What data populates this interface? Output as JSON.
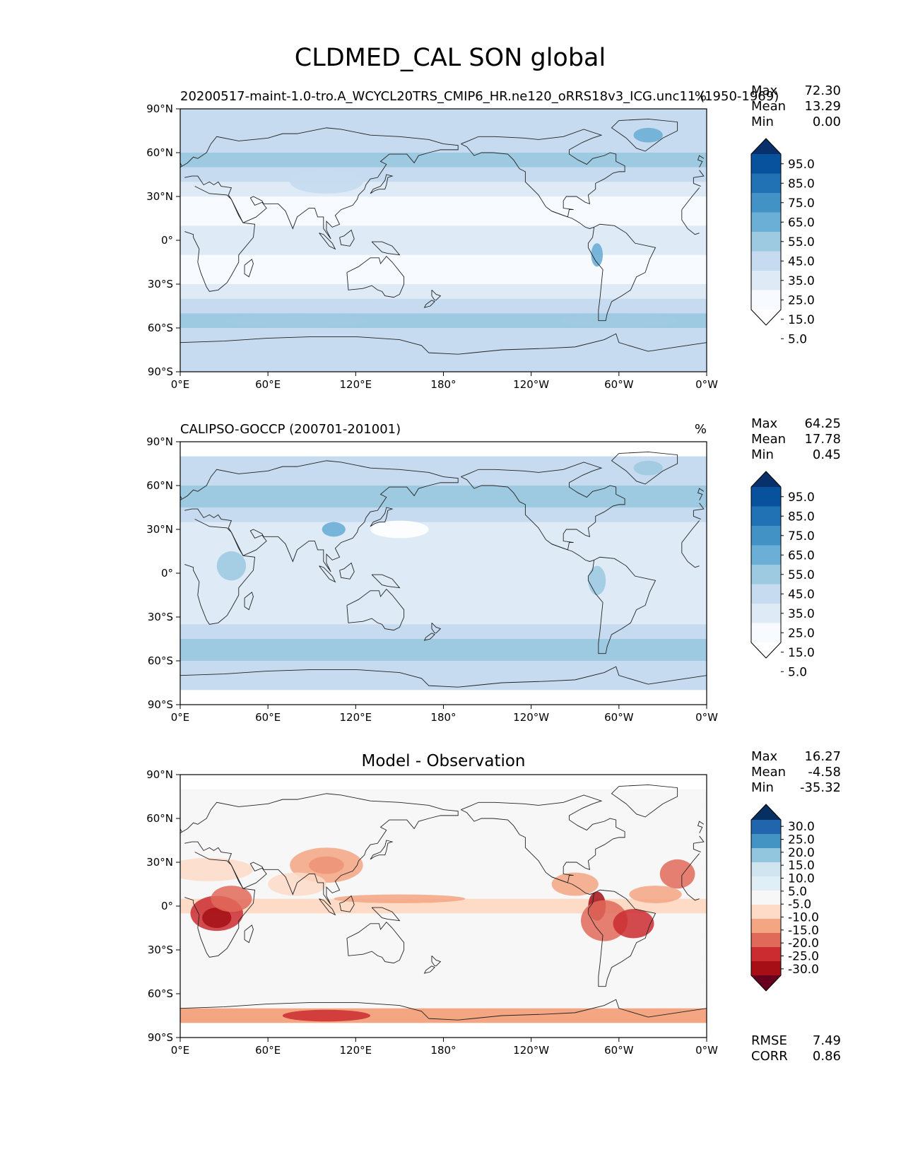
{
  "title": "CLDMED_CAL SON global",
  "colors": {
    "seq": [
      "#ffffff",
      "#f7fbff",
      "#deebf7",
      "#c6dbef",
      "#9ecae1",
      "#6baed6",
      "#4292c6",
      "#2171b5",
      "#08519c",
      "#08306b"
    ],
    "div": [
      "#67001f",
      "#a50f15",
      "#cb2c30",
      "#e06a5a",
      "#f4a582",
      "#fddbc7",
      "#f7f7f7",
      "#e0eef6",
      "#d1e5f0",
      "#92c5de",
      "#4393c3",
      "#2166ac",
      "#053061"
    ],
    "land_outline": "#222222"
  },
  "chart_data": [
    {
      "type": "heatmap",
      "panel": "test",
      "title_left": "20200517-maint-1.0-tro.A_WCYCL20TRS_CMIP6_HR.ne120_oRRS18v3_ICG.unc11 (1950-1969)",
      "title_right": "%",
      "stats": [
        {
          "label": "Max",
          "value": "72.30"
        },
        {
          "label": "Mean",
          "value": "13.29"
        },
        {
          "label": "Min",
          "value": "0.00"
        }
      ],
      "xticks": [
        "0°E",
        "60°E",
        "120°E",
        "180°",
        "120°W",
        "60°W",
        "0°W"
      ],
      "yticks": [
        "90°N",
        "60°N",
        "30°N",
        "0°",
        "30°S",
        "60°S",
        "90°S"
      ],
      "xlim": [
        0,
        360
      ],
      "ylim": [
        -90,
        90
      ],
      "colorbar_ticks": [
        "95.0",
        "85.0",
        "75.0",
        "65.0",
        "55.0",
        "45.0",
        "35.0",
        "25.0",
        "15.0",
        "5.0"
      ],
      "colorbar_levels": [
        0,
        5,
        15,
        25,
        35,
        45,
        55,
        65,
        75,
        85,
        95,
        100
      ]
    },
    {
      "type": "heatmap",
      "panel": "reference",
      "title_left": "CALIPSO-GOCCP (200701-201001)",
      "title_right": "%",
      "stats": [
        {
          "label": "Max",
          "value": "64.25"
        },
        {
          "label": "Mean",
          "value": "17.78"
        },
        {
          "label": "Min",
          "value": "0.45"
        }
      ],
      "xticks": [
        "0°E",
        "60°E",
        "120°E",
        "180°",
        "120°W",
        "60°W",
        "0°W"
      ],
      "yticks": [
        "90°N",
        "60°N",
        "30°N",
        "0°",
        "30°S",
        "60°S",
        "90°S"
      ],
      "xlim": [
        0,
        360
      ],
      "ylim": [
        -90,
        90
      ],
      "colorbar_ticks": [
        "95.0",
        "85.0",
        "75.0",
        "65.0",
        "55.0",
        "45.0",
        "35.0",
        "25.0",
        "15.0",
        "5.0"
      ],
      "colorbar_levels": [
        0,
        5,
        15,
        25,
        35,
        45,
        55,
        65,
        75,
        85,
        95,
        100
      ]
    },
    {
      "type": "heatmap",
      "panel": "difference",
      "title_center": "Model - Observation",
      "stats": [
        {
          "label": "Max",
          "value": "16.27"
        },
        {
          "label": "Mean",
          "value": "-4.58"
        },
        {
          "label": "Min",
          "value": "-35.32"
        }
      ],
      "xticks": [
        "0°E",
        "60°E",
        "120°E",
        "180°",
        "120°W",
        "60°W",
        "0°W"
      ],
      "yticks": [
        "90°N",
        "60°N",
        "30°N",
        "0°",
        "30°S",
        "60°S",
        "90°S"
      ],
      "xlim": [
        0,
        360
      ],
      "ylim": [
        -90,
        90
      ],
      "colorbar_ticks": [
        "30.0",
        "25.0",
        "20.0",
        "15.0",
        "10.0",
        "5.0",
        "-5.0",
        "-10.0",
        "-15.0",
        "-20.0",
        "-25.0",
        "-30.0"
      ],
      "colorbar_levels": [
        -35,
        -30,
        -25,
        -20,
        -15,
        -10,
        -5,
        5,
        10,
        15,
        20,
        25,
        30,
        35
      ],
      "metrics": [
        {
          "label": "RMSE",
          "value": "7.49"
        },
        {
          "label": "CORR",
          "value": "0.86"
        }
      ]
    }
  ]
}
